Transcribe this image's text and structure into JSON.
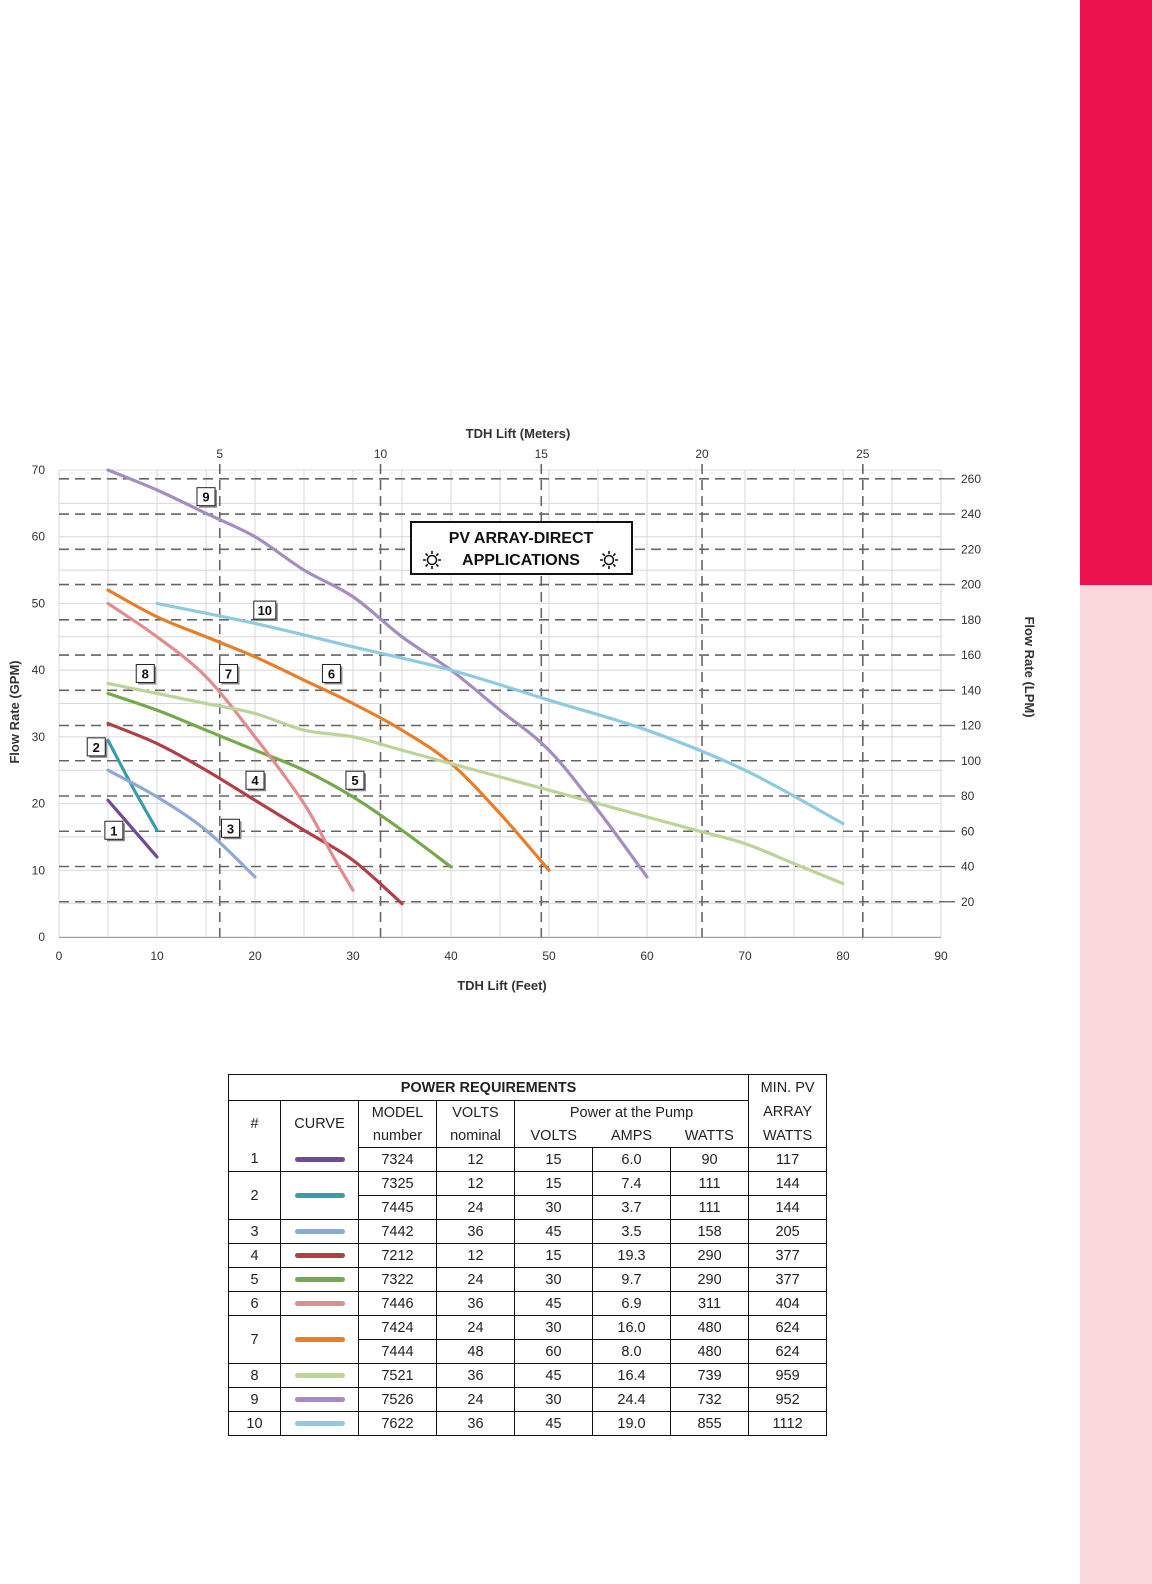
{
  "colors": {
    "sidebar_top": "#EC134D",
    "sidebar_bottom": "#FAD9DC"
  },
  "chart_data": {
    "type": "line",
    "title": "",
    "xlabel": "TDH Lift (Feet)",
    "ylabel": "Flow Rate (GPM)",
    "x2label": "TDH Lift (Meters)",
    "y2label": "Flow Rate (LPM)",
    "xlim": [
      0,
      90
    ],
    "ylim": [
      0,
      70
    ],
    "x_ticks": [
      0,
      10,
      20,
      30,
      40,
      50,
      60,
      70,
      80,
      90
    ],
    "y_ticks": [
      0,
      10,
      20,
      30,
      40,
      50,
      60,
      70
    ],
    "x2_ticks": [
      5,
      10,
      15,
      20,
      25
    ],
    "y2_ticks": [
      20,
      40,
      60,
      80,
      100,
      120,
      140,
      160,
      180,
      200,
      220,
      240,
      260
    ],
    "grid": true,
    "annotation": [
      "PV ARRAY-DIRECT",
      "APPLICATIONS"
    ],
    "series": [
      {
        "label": "1",
        "color": "#6B4C9A",
        "x": [
          5,
          10
        ],
        "y": [
          20.5,
          12
        ],
        "label_at": [
          5.6,
          16
        ]
      },
      {
        "label": "2",
        "color": "#3A9BB0",
        "x": [
          5,
          7.5,
          10
        ],
        "y": [
          29.5,
          22.5,
          16
        ],
        "label_at": [
          3.8,
          28.5
        ]
      },
      {
        "label": "3",
        "color": "#8EA9D6",
        "x": [
          5,
          10,
          15,
          20
        ],
        "y": [
          25,
          21,
          16,
          9
        ],
        "label_at": [
          17.5,
          16.3
        ]
      },
      {
        "label": "4",
        "color": "#B04045",
        "x": [
          5,
          10,
          15,
          20,
          25,
          30,
          35
        ],
        "y": [
          32,
          29,
          25,
          20.5,
          16,
          11.5,
          5
        ],
        "label_at": [
          20,
          23.5
        ]
      },
      {
        "label": "5",
        "color": "#77A94A",
        "x": [
          5,
          10,
          15,
          20,
          25,
          30,
          35,
          40
        ],
        "y": [
          36.5,
          34,
          31,
          28,
          25,
          21,
          16,
          10.5
        ],
        "label_at": [
          30.2,
          23.5
        ]
      },
      {
        "label": "6",
        "color": "#E28C90",
        "x": [
          5,
          10,
          15,
          20,
          25,
          28,
          30
        ],
        "y": [
          50,
          45,
          39,
          30,
          20,
          12,
          7
        ],
        "label_at": [
          27.8,
          39.5
        ]
      },
      {
        "label": "7",
        "color": "#E67E2A",
        "x": [
          5,
          10,
          15,
          20,
          25,
          30,
          35,
          40,
          45,
          50
        ],
        "y": [
          52,
          48,
          45,
          42,
          38.5,
          35,
          31,
          26,
          18.5,
          10
        ],
        "label_at": [
          17.3,
          39.5
        ]
      },
      {
        "label": "8",
        "color": "#BCD39A",
        "x": [
          5,
          10,
          15,
          20,
          25,
          30,
          35,
          40,
          45,
          50,
          55,
          60,
          65,
          70,
          75,
          80
        ],
        "y": [
          38,
          36.5,
          35,
          33.5,
          31,
          30,
          28,
          26,
          24,
          22,
          20,
          18,
          16,
          14,
          11,
          8
        ],
        "label_at": [
          8.8,
          39.5
        ]
      },
      {
        "label": "9",
        "color": "#A48DC0",
        "x": [
          5,
          10,
          15,
          20,
          25,
          30,
          35,
          40,
          45,
          50,
          55,
          60
        ],
        "y": [
          70,
          67,
          63.5,
          60,
          55,
          51,
          45,
          40,
          34,
          28,
          19,
          9
        ],
        "label_at": [
          15,
          66
        ]
      },
      {
        "label": "10",
        "color": "#8ECAE0",
        "x": [
          10,
          20,
          30,
          40,
          50,
          60,
          70,
          80
        ],
        "y": [
          50,
          47,
          43.5,
          40,
          35.5,
          31,
          25,
          17
        ],
        "label_at": [
          21,
          49
        ]
      }
    ]
  },
  "table": {
    "title": "POWER REQUIREMENTS",
    "min_pv_lines": [
      "MIN. PV",
      "ARRAY",
      "WATTS"
    ],
    "col_num": "#",
    "col_curve": "CURVE",
    "col_model": [
      "MODEL",
      "number"
    ],
    "col_volts": [
      "VOLTS",
      "nominal"
    ],
    "power_group": "Power at the Pump",
    "power_cols": [
      "VOLTS",
      "AMPS",
      "WATTS"
    ],
    "groups": [
      {
        "num": "1",
        "color": "#6B4C9A",
        "rows": [
          [
            "7324",
            "12",
            "15",
            "6.0",
            "90",
            "117"
          ]
        ]
      },
      {
        "num": "2",
        "color": "#3A9BB0",
        "rows": [
          [
            "7325",
            "12",
            "15",
            "7.4",
            "111",
            "144"
          ],
          [
            "7445",
            "24",
            "30",
            "3.7",
            "111",
            "144"
          ]
        ]
      },
      {
        "num": "3",
        "color": "#8EA9D6",
        "rows": [
          [
            "7442",
            "36",
            "45",
            "3.5",
            "158",
            "205"
          ]
        ]
      },
      {
        "num": "4",
        "color": "#B04045",
        "rows": [
          [
            "7212",
            "12",
            "15",
            "19.3",
            "290",
            "377"
          ]
        ]
      },
      {
        "num": "5",
        "color": "#77A94A",
        "rows": [
          [
            "7322",
            "24",
            "30",
            "9.7",
            "290",
            "377"
          ]
        ]
      },
      {
        "num": "6",
        "color": "#E28C90",
        "rows": [
          [
            "7446",
            "36",
            "45",
            "6.9",
            "311",
            "404"
          ]
        ]
      },
      {
        "num": "7",
        "color": "#E67E2A",
        "rows": [
          [
            "7424",
            "24",
            "30",
            "16.0",
            "480",
            "624"
          ],
          [
            "7444",
            "48",
            "60",
            "8.0",
            "480",
            "624"
          ]
        ]
      },
      {
        "num": "8",
        "color": "#BCD39A",
        "rows": [
          [
            "7521",
            "36",
            "45",
            "16.4",
            "739",
            "959"
          ]
        ]
      },
      {
        "num": "9",
        "color": "#A48DC0",
        "rows": [
          [
            "7526",
            "24",
            "30",
            "24.4",
            "732",
            "952"
          ]
        ]
      },
      {
        "num": "10",
        "color": "#8ECAE0",
        "rows": [
          [
            "7622",
            "36",
            "45",
            "19.0",
            "855",
            "1112"
          ]
        ]
      }
    ]
  }
}
